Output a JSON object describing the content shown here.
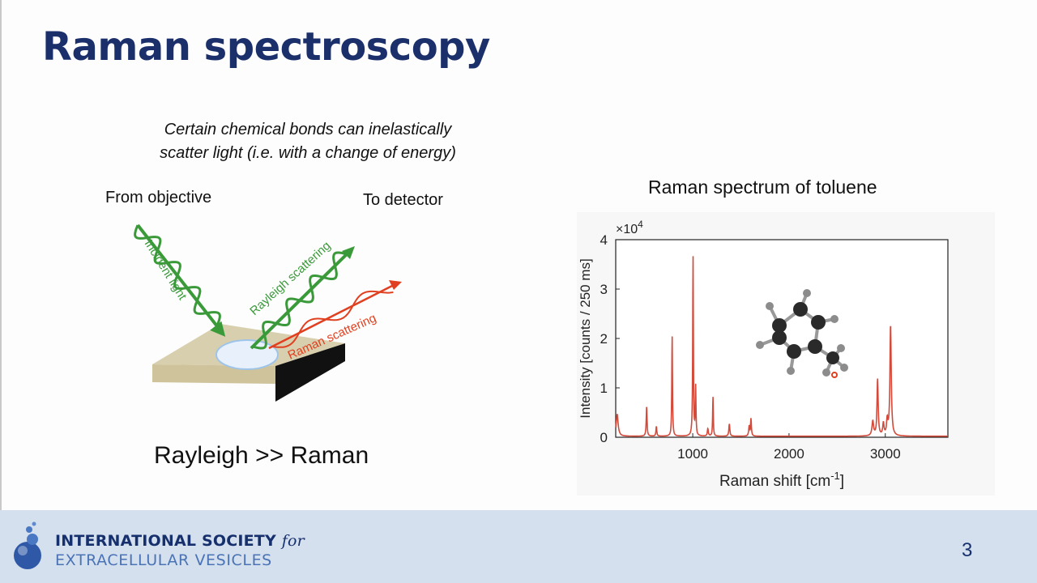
{
  "slide": {
    "title": "Raman spectroscopy",
    "subtitle_line1": "Certain chemical bonds can inelastically",
    "subtitle_line2": "scatter light (i.e. with a change of energy)",
    "from_objective": "From objective",
    "to_detector": "To detector",
    "incident_light": "Incident light",
    "rayleigh_scattering": "Rayleigh scattering",
    "raman_scattering": "Raman scattering",
    "relation": "Rayleigh >> Raman",
    "chart_title": "Raman spectrum of toluene",
    "page_number": "3"
  },
  "footer": {
    "org_line1": "INTERNATIONAL SOCIETY",
    "org_line1_for": "for",
    "org_line2": "EXTRACELLULAR VESICLES"
  },
  "colors": {
    "title": "#1b2f6b",
    "green": "#3a9a3a",
    "red": "#e04020",
    "spectrum": "#d44a3a",
    "footer_bg": "#d5e0ef"
  },
  "chart_data": {
    "type": "line",
    "title": "Raman spectrum of toluene",
    "xlabel": "Raman shift [cm",
    "xlabel_sup": "-1",
    "xlabel_end": "]",
    "ylabel": "Intensity [counts / 250 ms]",
    "y_multiplier": "×10",
    "y_multiplier_exp": "4",
    "xlim": [
      200,
      3650
    ],
    "ylim": [
      0,
      4
    ],
    "x_ticks": [
      "1000",
      "2000",
      "3000"
    ],
    "y_ticks": [
      "0",
      "1",
      "2",
      "3",
      "4"
    ],
    "series": [
      {
        "color": "#d44a3a",
        "peaks": [
          {
            "x": 215,
            "y": 0.45,
            "w": 12
          },
          {
            "x": 521,
            "y": 0.6,
            "w": 5
          },
          {
            "x": 622,
            "y": 0.2,
            "w": 5
          },
          {
            "x": 786,
            "y": 2.05,
            "w": 4
          },
          {
            "x": 1003,
            "y": 3.65,
            "w": 4
          },
          {
            "x": 1030,
            "y": 1.0,
            "w": 4
          },
          {
            "x": 1157,
            "y": 0.15,
            "w": 6
          },
          {
            "x": 1210,
            "y": 0.8,
            "w": 4
          },
          {
            "x": 1380,
            "y": 0.25,
            "w": 6
          },
          {
            "x": 1586,
            "y": 0.2,
            "w": 6
          },
          {
            "x": 1605,
            "y": 0.35,
            "w": 5
          },
          {
            "x": 2870,
            "y": 0.3,
            "w": 10
          },
          {
            "x": 2920,
            "y": 1.15,
            "w": 7
          },
          {
            "x": 2980,
            "y": 0.25,
            "w": 8
          },
          {
            "x": 3055,
            "y": 2.25,
            "w": 8
          },
          {
            "x": 3020,
            "y": 0.3,
            "w": 8
          }
        ]
      }
    ]
  }
}
